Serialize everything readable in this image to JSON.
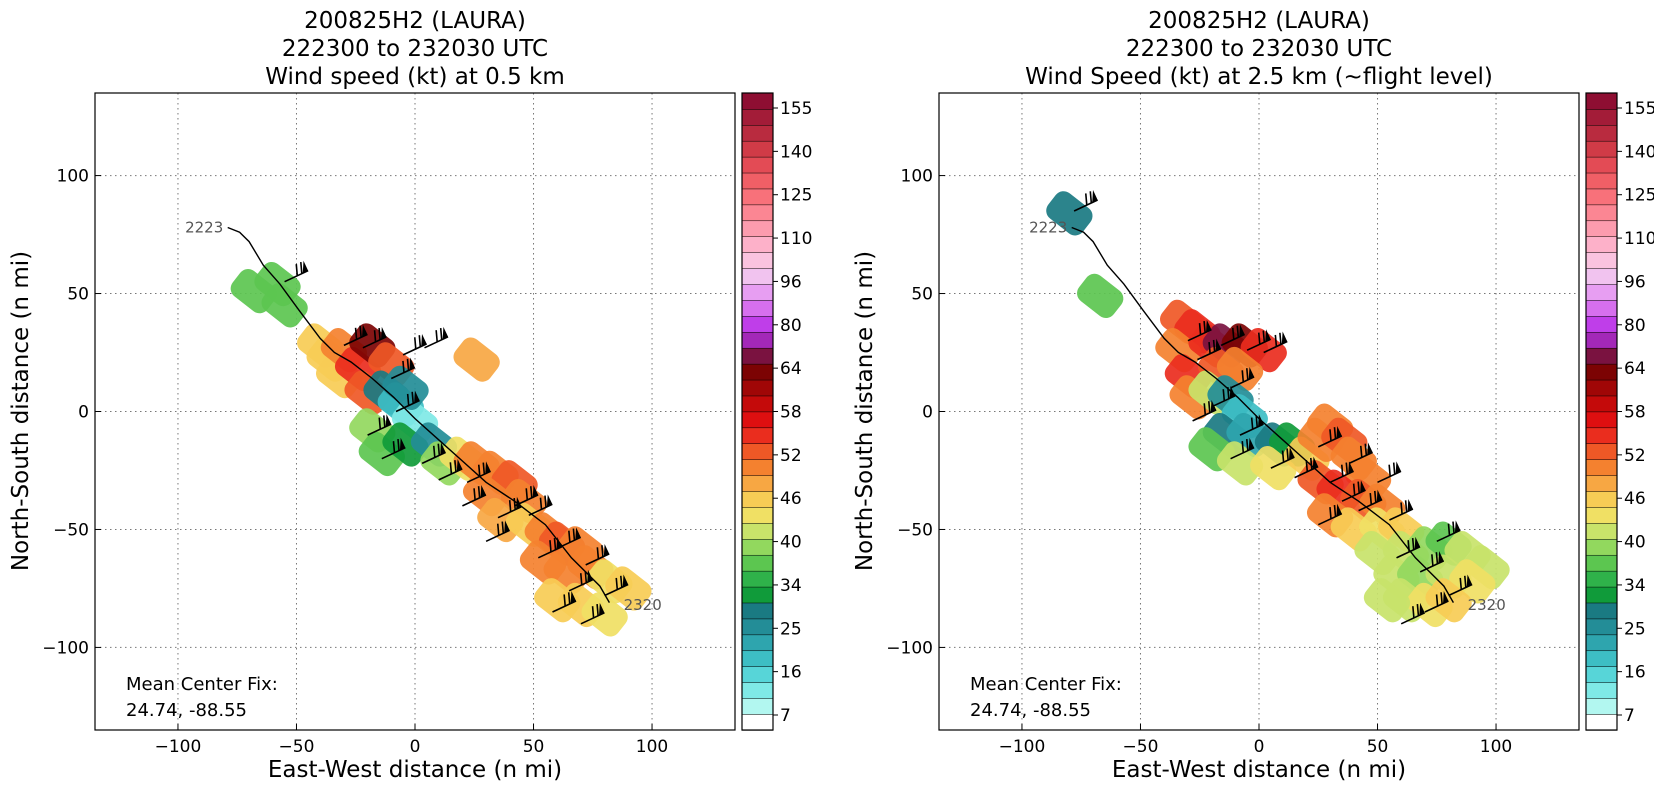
{
  "chart_data": [
    {
      "type": "heatmap",
      "title": [
        "200825H2 (LAURA)",
        "222300 to 232030 UTC",
        "Wind speed (kt) at 0.5 km"
      ],
      "xlabel": "East-West distance (n mi)",
      "ylabel": "North-South distance (n mi)",
      "xlim": [
        -135,
        135
      ],
      "ylim": [
        -135,
        135
      ],
      "xticks": [
        -100,
        -50,
        0,
        50,
        100
      ],
      "yticks": [
        -100,
        -50,
        0,
        50,
        100
      ],
      "grid": true,
      "annotation": [
        "Mean Center Fix:",
        "24.74, -88.55"
      ],
      "flight_track": [
        [
          -79,
          78
        ],
        [
          -74,
          76
        ],
        [
          -70,
          72
        ],
        [
          -64,
          62
        ],
        [
          -57,
          54
        ],
        [
          -49,
          43
        ],
        [
          -40,
          31
        ],
        [
          -34,
          25
        ],
        [
          -27,
          21
        ],
        [
          -18,
          14
        ],
        [
          -9,
          6
        ],
        [
          0,
          -3
        ],
        [
          10,
          -12
        ],
        [
          20,
          -21
        ],
        [
          30,
          -30
        ],
        [
          42,
          -38
        ],
        [
          55,
          -48
        ],
        [
          66,
          -62
        ],
        [
          78,
          -74
        ],
        [
          82,
          -81
        ]
      ],
      "track_labels": [
        {
          "text": "2223",
          "x": -97,
          "y": 78
        },
        {
          "text": "2320",
          "x": 88,
          "y": -82
        }
      ],
      "barb_x": [
        -55,
        -30,
        -22,
        -10,
        -5,
        4,
        -8,
        -20,
        -14,
        3,
        10,
        22,
        20,
        35,
        42,
        48,
        30,
        52,
        60,
        65,
        72,
        80,
        70,
        58
      ],
      "barb_y": [
        55,
        28,
        27,
        14,
        24,
        27,
        0,
        -10,
        -20,
        -22,
        -29,
        -30,
        -40,
        -45,
        -40,
        -44,
        -55,
        -62,
        -58,
        -76,
        -65,
        -78,
        -90,
        -85
      ],
      "swath": [
        {
          "x": -68,
          "y": 51,
          "v": 34
        },
        {
          "x": -58,
          "y": 54,
          "v": 34
        },
        {
          "x": -55,
          "y": 45,
          "v": 36
        },
        {
          "x": -40,
          "y": 28,
          "v": 46
        },
        {
          "x": -36,
          "y": 22,
          "v": 46
        },
        {
          "x": -32,
          "y": 15,
          "v": 48
        },
        {
          "x": -30,
          "y": 26,
          "v": 52
        },
        {
          "x": -24,
          "y": 18,
          "v": 58
        },
        {
          "x": -20,
          "y": 8,
          "v": 56
        },
        {
          "x": -18,
          "y": 28,
          "v": 70
        },
        {
          "x": -10,
          "y": 20,
          "v": 55
        },
        {
          "x": -12,
          "y": 8,
          "v": 25
        },
        {
          "x": -6,
          "y": 3,
          "v": 16
        },
        {
          "x": 0,
          "y": -4,
          "v": 10
        },
        {
          "x": -4,
          "y": 10,
          "v": 22
        },
        {
          "x": -18,
          "y": -8,
          "v": 38
        },
        {
          "x": -14,
          "y": -18,
          "v": 36
        },
        {
          "x": -4,
          "y": -14,
          "v": 30
        },
        {
          "x": 8,
          "y": -14,
          "v": 22
        },
        {
          "x": 12,
          "y": -22,
          "v": 38
        },
        {
          "x": 20,
          "y": -20,
          "v": 44
        },
        {
          "x": 26,
          "y": -22,
          "v": 52
        },
        {
          "x": 34,
          "y": -26,
          "v": 54
        },
        {
          "x": 42,
          "y": -30,
          "v": 55
        },
        {
          "x": 30,
          "y": -35,
          "v": 54
        },
        {
          "x": 46,
          "y": -38,
          "v": 52
        },
        {
          "x": 36,
          "y": -46,
          "v": 50
        },
        {
          "x": 48,
          "y": -48,
          "v": 46
        },
        {
          "x": 56,
          "y": -52,
          "v": 54
        },
        {
          "x": 62,
          "y": -56,
          "v": 56
        },
        {
          "x": 70,
          "y": -58,
          "v": 54
        },
        {
          "x": 54,
          "y": -64,
          "v": 52
        },
        {
          "x": 64,
          "y": -68,
          "v": 53
        },
        {
          "x": 74,
          "y": -66,
          "v": 52
        },
        {
          "x": 82,
          "y": -72,
          "v": 44
        },
        {
          "x": 90,
          "y": -75,
          "v": 46
        },
        {
          "x": 70,
          "y": -82,
          "v": 46
        },
        {
          "x": 80,
          "y": -86,
          "v": 44
        },
        {
          "x": 60,
          "y": -80,
          "v": 48
        },
        {
          "x": 26,
          "y": 22,
          "v": 50
        }
      ]
    },
    {
      "type": "heatmap",
      "title": [
        "200825H2 (LAURA)",
        "222300 to 232030 UTC",
        "Wind Speed (kt) at 2.5 km (~flight level)"
      ],
      "xlabel": "East-West distance (n mi)",
      "ylabel": "North-South distance (n mi)",
      "xlim": [
        -135,
        135
      ],
      "ylim": [
        -135,
        135
      ],
      "xticks": [
        -100,
        -50,
        0,
        50,
        100
      ],
      "yticks": [
        -100,
        -50,
        0,
        50,
        100
      ],
      "grid": true,
      "annotation": [
        "Mean Center Fix:",
        "24.74, -88.55"
      ],
      "flight_track": [
        [
          -79,
          78
        ],
        [
          -74,
          76
        ],
        [
          -70,
          72
        ],
        [
          -64,
          62
        ],
        [
          -57,
          54
        ],
        [
          -49,
          43
        ],
        [
          -40,
          31
        ],
        [
          -34,
          25
        ],
        [
          -27,
          21
        ],
        [
          -18,
          14
        ],
        [
          -9,
          6
        ],
        [
          0,
          -3
        ],
        [
          10,
          -12
        ],
        [
          20,
          -21
        ],
        [
          30,
          -30
        ],
        [
          42,
          -38
        ],
        [
          55,
          -48
        ],
        [
          66,
          -62
        ],
        [
          78,
          -74
        ],
        [
          82,
          -81
        ]
      ],
      "track_labels": [
        {
          "text": "2223",
          "x": -97,
          "y": 78
        },
        {
          "text": "2320",
          "x": 88,
          "y": -82
        }
      ],
      "barb_x": [
        -78,
        -30,
        -26,
        -16,
        -12,
        -5,
        2,
        -20,
        -28,
        -12,
        -8,
        5,
        15,
        25,
        30,
        38,
        42,
        50,
        55,
        25,
        35,
        58,
        68,
        75,
        80,
        70,
        60
      ],
      "barb_y": [
        85,
        30,
        22,
        28,
        10,
        26,
        25,
        2,
        -4,
        -20,
        -10,
        -24,
        -28,
        -15,
        -30,
        -22,
        -42,
        -30,
        -46,
        -48,
        -38,
        -62,
        -68,
        -55,
        -78,
        -85,
        -90
      ],
      "swath": [
        {
          "x": -80,
          "y": 84,
          "v": 25
        },
        {
          "x": -67,
          "y": 49,
          "v": 34
        },
        {
          "x": -32,
          "y": 38,
          "v": 56
        },
        {
          "x": -26,
          "y": 34,
          "v": 60
        },
        {
          "x": -34,
          "y": 26,
          "v": 54
        },
        {
          "x": -30,
          "y": 15,
          "v": 58
        },
        {
          "x": -28,
          "y": 6,
          "v": 52
        },
        {
          "x": -20,
          "y": 28,
          "v": 58
        },
        {
          "x": -14,
          "y": 28,
          "v": 75
        },
        {
          "x": -6,
          "y": 28,
          "v": 70
        },
        {
          "x": 2,
          "y": 26,
          "v": 58
        },
        {
          "x": -16,
          "y": 18,
          "v": 56
        },
        {
          "x": -8,
          "y": 18,
          "v": 52
        },
        {
          "x": -20,
          "y": 8,
          "v": 40
        },
        {
          "x": -12,
          "y": 6,
          "v": 22
        },
        {
          "x": -6,
          "y": -2,
          "v": 16
        },
        {
          "x": -14,
          "y": -10,
          "v": 25
        },
        {
          "x": -4,
          "y": -10,
          "v": 20
        },
        {
          "x": 8,
          "y": -14,
          "v": 25
        },
        {
          "x": 14,
          "y": -14,
          "v": 28
        },
        {
          "x": -20,
          "y": -16,
          "v": 34
        },
        {
          "x": -8,
          "y": -22,
          "v": 40
        },
        {
          "x": 6,
          "y": -24,
          "v": 44
        },
        {
          "x": 20,
          "y": -20,
          "v": 48
        },
        {
          "x": 26,
          "y": -12,
          "v": 52
        },
        {
          "x": 30,
          "y": -6,
          "v": 54
        },
        {
          "x": 36,
          "y": -12,
          "v": 56
        },
        {
          "x": 40,
          "y": -20,
          "v": 54
        },
        {
          "x": 46,
          "y": -28,
          "v": 52
        },
        {
          "x": 26,
          "y": -30,
          "v": 56
        },
        {
          "x": 34,
          "y": -34,
          "v": 58
        },
        {
          "x": 44,
          "y": -38,
          "v": 56
        },
        {
          "x": 52,
          "y": -40,
          "v": 52
        },
        {
          "x": 30,
          "y": -44,
          "v": 54
        },
        {
          "x": 40,
          "y": -50,
          "v": 48
        },
        {
          "x": 52,
          "y": -50,
          "v": 44
        },
        {
          "x": 60,
          "y": -50,
          "v": 46
        },
        {
          "x": 50,
          "y": -60,
          "v": 42
        },
        {
          "x": 62,
          "y": -60,
          "v": 40
        },
        {
          "x": 72,
          "y": -58,
          "v": 38
        },
        {
          "x": 80,
          "y": -56,
          "v": 36
        },
        {
          "x": 88,
          "y": -60,
          "v": 40
        },
        {
          "x": 96,
          "y": -66,
          "v": 42
        },
        {
          "x": 58,
          "y": -70,
          "v": 40
        },
        {
          "x": 68,
          "y": -70,
          "v": 38
        },
        {
          "x": 80,
          "y": -70,
          "v": 40
        },
        {
          "x": 90,
          "y": -72,
          "v": 44
        },
        {
          "x": 62,
          "y": -80,
          "v": 42
        },
        {
          "x": 72,
          "y": -82,
          "v": 44
        },
        {
          "x": 80,
          "y": -80,
          "v": 46
        },
        {
          "x": 54,
          "y": -80,
          "v": 40
        }
      ]
    }
  ],
  "colorbar": {
    "ticks": [
      "155",
      "140",
      "125",
      "110",
      "96",
      "80",
      "64",
      "58",
      "52",
      "46",
      "40",
      "34",
      "25",
      "16",
      "7"
    ],
    "bin_colors": [
      "#ffffff",
      "#b2f7f0",
      "#7fe9e6",
      "#57d5d8",
      "#3dbec4",
      "#2ea5ae",
      "#238d97",
      "#1a7a82",
      "#109b3a",
      "#2fb24a",
      "#5cc650",
      "#92d85e",
      "#c8e36a",
      "#f0e064",
      "#f7cc55",
      "#f7a743",
      "#f4812f",
      "#ef5826",
      "#ea2d1e",
      "#de0f10",
      "#c40a0a",
      "#a00606",
      "#7c0303",
      "#7a1240",
      "#a328b8",
      "#bf3ee9",
      "#d66fee",
      "#e79ef2",
      "#f1c3ef",
      "#fac3df",
      "#fdb1c9",
      "#fc9cae",
      "#fb8693",
      "#f8717a",
      "#f05f66",
      "#e34b55",
      "#d03b47",
      "#b92b3f",
      "#a31c38",
      "#8e0e32"
    ],
    "bounds": [
      0,
      7,
      10,
      13,
      16,
      19,
      22,
      25,
      28,
      31,
      34,
      37,
      40,
      43,
      46,
      49,
      52,
      55,
      58,
      61,
      64,
      67,
      70,
      75,
      80,
      85,
      90,
      96,
      103,
      110,
      115,
      120,
      125,
      130,
      135,
      140,
      145,
      150,
      155,
      160
    ]
  }
}
